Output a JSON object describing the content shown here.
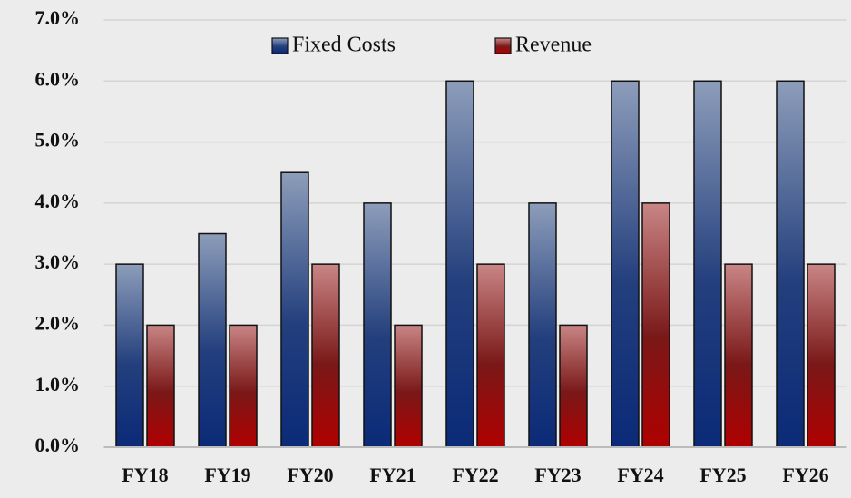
{
  "chart_data": {
    "type": "bar",
    "categories": [
      "FY18",
      "FY19",
      "FY20",
      "FY21",
      "FY22",
      "FY23",
      "FY24",
      "FY25",
      "FY26"
    ],
    "series": [
      {
        "name": "Fixed Costs",
        "color": "#1a3a7a",
        "values": [
          3,
          3.5,
          4.5,
          4,
          6,
          4,
          6,
          6,
          6
        ]
      },
      {
        "name": "Revenue",
        "color": "#a80a0a",
        "values": [
          2,
          2,
          3,
          2,
          3,
          2,
          4,
          3,
          3
        ]
      }
    ],
    "ylim": [
      0,
      7
    ],
    "yticks": [
      {
        "value": 0,
        "label": "0.0%"
      },
      {
        "value": 1,
        "label": "1.0%"
      },
      {
        "value": 2,
        "label": "2.0%"
      },
      {
        "value": 3,
        "label": "3.0%"
      },
      {
        "value": 4,
        "label": "4.0%"
      },
      {
        "value": 5,
        "label": "5.0%"
      },
      {
        "value": 6,
        "label": "6.0%"
      },
      {
        "value": 7,
        "label": "7.0%"
      }
    ],
    "grid": true,
    "legend": "top"
  }
}
